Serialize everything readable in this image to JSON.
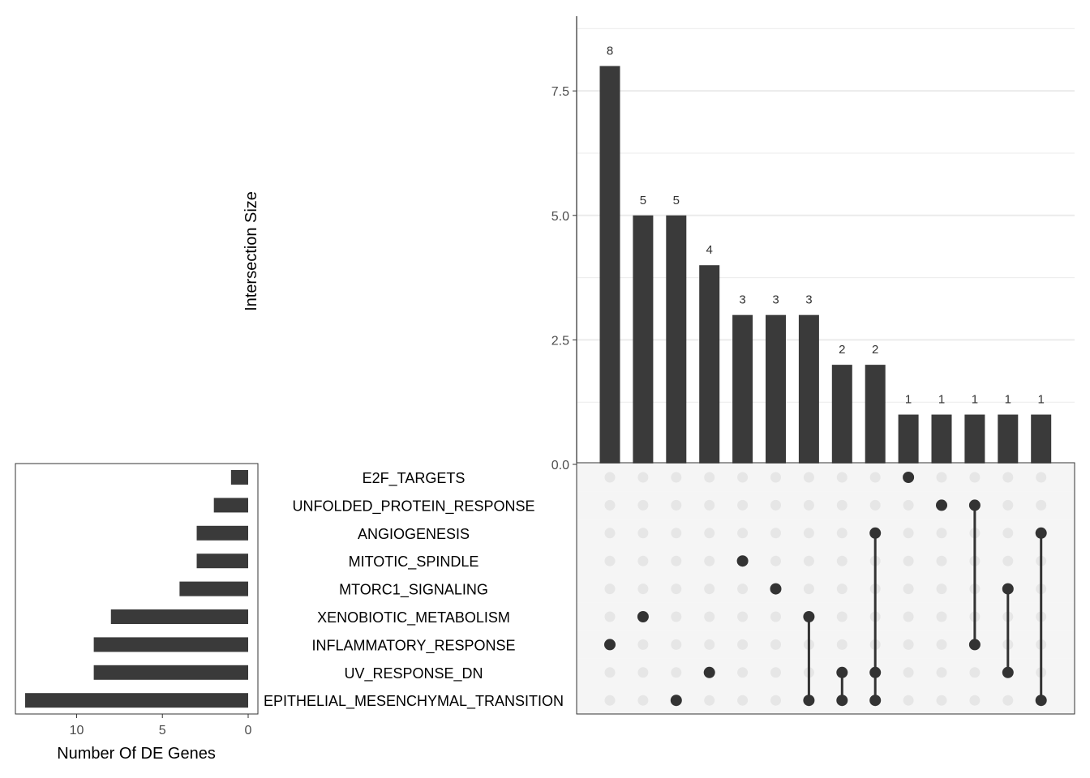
{
  "chart_data": {
    "type": "upset",
    "colors": {
      "bar": "#3a3a3a",
      "dot_active": "#333333",
      "dot_inactive": "#e6e6e6",
      "grid": "#ebebeb",
      "stripe": "#f5f5f5",
      "axis_text": "#4d4d4d"
    },
    "intersection_chart": {
      "ylabel": "Intersection Size",
      "ylim": [
        0,
        9
      ],
      "y_ticks": [
        0.0,
        2.5,
        5.0,
        7.5
      ],
      "y_tick_labels": [
        "0.0",
        "2.5",
        "5.0",
        "7.5"
      ],
      "minor_grid": [
        1.25,
        3.75,
        6.25,
        8.75
      ],
      "values": [
        8,
        5,
        5,
        4,
        3,
        3,
        3,
        2,
        2,
        1,
        1,
        1,
        1,
        1
      ],
      "value_labels": [
        "8",
        "5",
        "5",
        "4",
        "3",
        "3",
        "3",
        "2",
        "2",
        "1",
        "1",
        "1",
        "1",
        "1"
      ]
    },
    "sets": [
      "E2F_TARGETS",
      "UNFOLDED_PROTEIN_RESPONSE",
      "ANGIOGENESIS",
      "MITOTIC_SPINDLE",
      "MTORC1_SIGNALING",
      "XENOBIOTIC_METABOLISM",
      "INFLAMMATORY_RESPONSE",
      "UV_RESPONSE_DN",
      "EPITHELIAL_MESENCHYMAL_TRANSITION"
    ],
    "set_sizes": [
      1,
      2,
      3,
      3,
      4,
      8,
      9,
      9,
      13
    ],
    "set_size_chart": {
      "xlabel": "Number Of DE Genes",
      "xlim": [
        0,
        14
      ],
      "x_ticks": [
        10,
        5,
        0
      ],
      "x_tick_labels": [
        "10",
        "5",
        "0"
      ]
    },
    "intersections": [
      [
        6
      ],
      [
        5
      ],
      [
        8
      ],
      [
        7
      ],
      [
        3
      ],
      [
        4
      ],
      [
        5,
        8
      ],
      [
        7,
        8
      ],
      [
        2,
        7,
        8
      ],
      [
        0
      ],
      [
        1
      ],
      [
        1,
        6
      ],
      [
        4,
        7
      ],
      [
        2,
        8
      ]
    ]
  }
}
